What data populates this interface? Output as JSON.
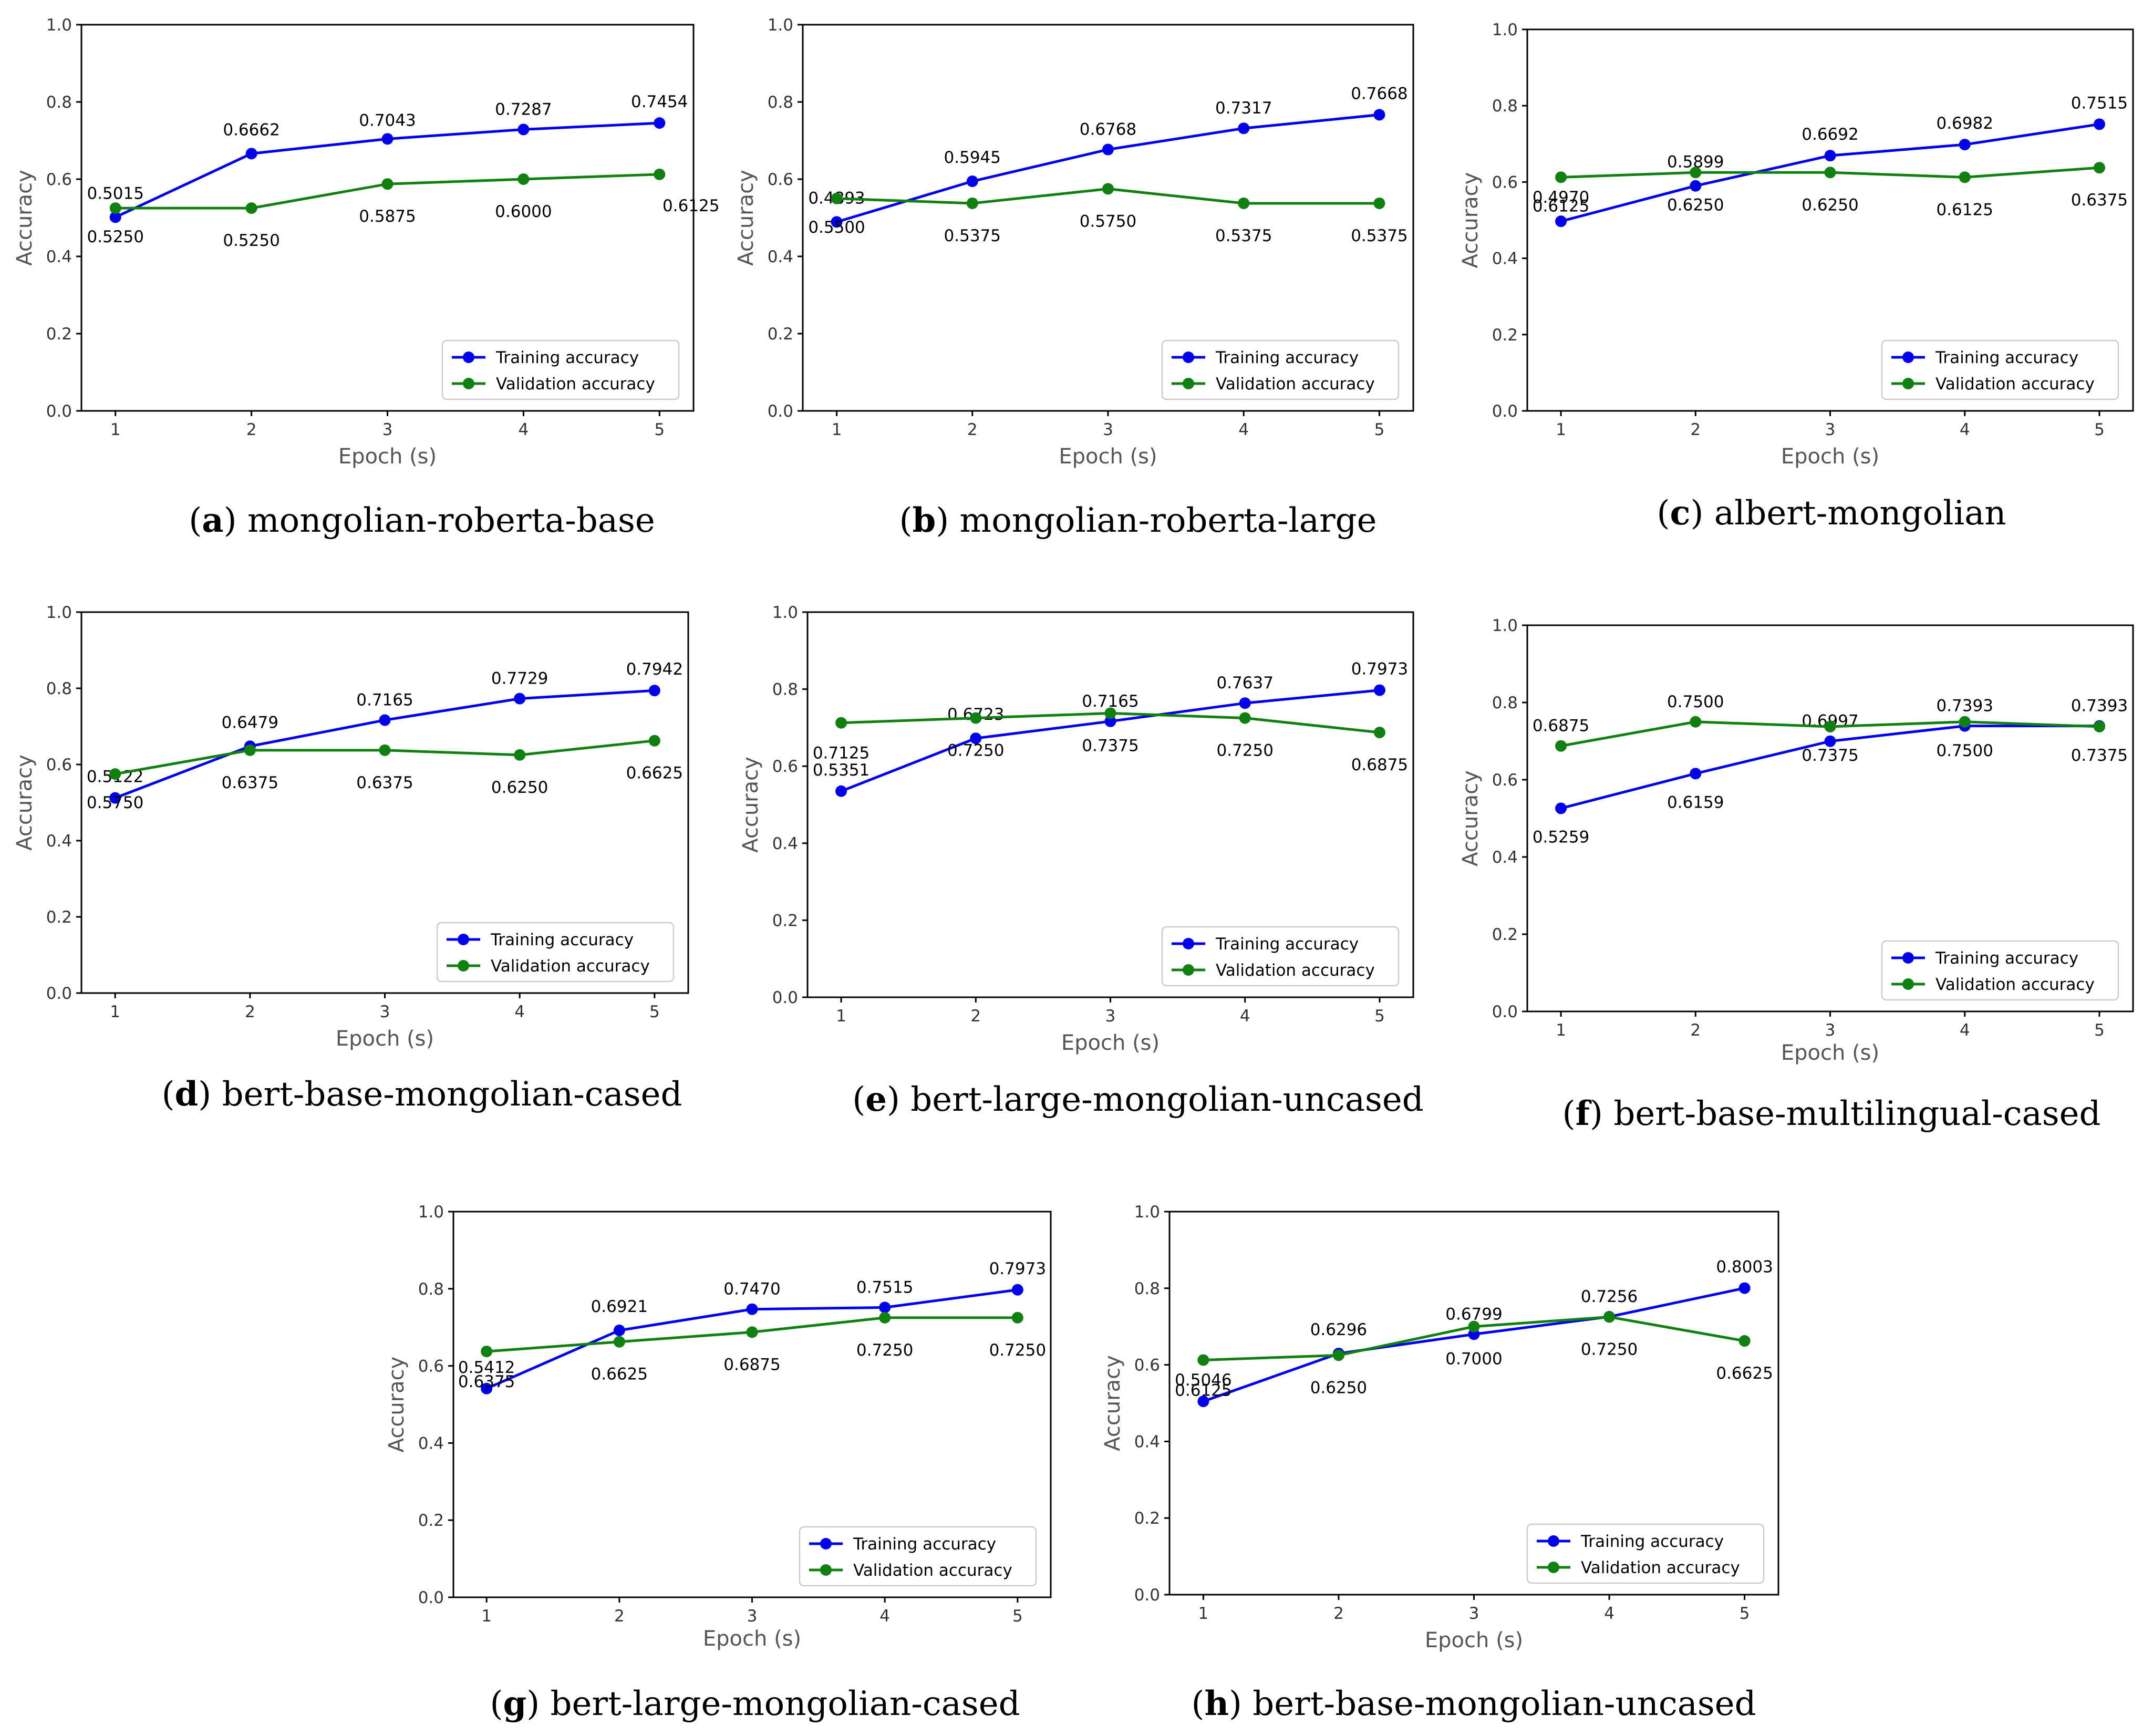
{
  "colors": {
    "training": "#0000ee",
    "validation": "#108010"
  },
  "chart_data": [
    {
      "type": "line",
      "letter": "a",
      "name": "mongolian-roberta-base",
      "x": [
        1,
        2,
        3,
        4,
        5
      ],
      "xlabel": "Epoch (s)",
      "ylabel": "Accuracy",
      "ylim": [
        0,
        1.0
      ],
      "xticks": [
        "1",
        "2",
        "3",
        "4",
        "5"
      ],
      "yticks": [
        "0.0",
        "0.2",
        "0.4",
        "0.6",
        "0.8",
        "1.0"
      ],
      "legend_position": "lower-right",
      "series": [
        {
          "name": "Training accuracy",
          "values": [
            0.5015,
            0.6662,
            0.7043,
            0.7287,
            0.7454
          ],
          "labels": [
            "0.5015",
            "0.6662",
            "0.7043",
            "0.7287",
            "0.7454"
          ]
        },
        {
          "name": "Validation accuracy",
          "values": [
            0.525,
            0.525,
            0.5875,
            0.6,
            0.6125
          ],
          "labels": [
            "0.5250",
            "0.5250",
            "0.5875",
            "0.6000",
            "0.6125"
          ]
        }
      ]
    },
    {
      "type": "line",
      "letter": "b",
      "name": "mongolian-roberta-large",
      "x": [
        1,
        2,
        3,
        4,
        5
      ],
      "xlabel": "Epoch (s)",
      "ylabel": "Accuracy",
      "ylim": [
        0,
        1.0
      ],
      "xticks": [
        "1",
        "2",
        "3",
        "4",
        "5"
      ],
      "yticks": [
        "0.0",
        "0.2",
        "0.4",
        "0.6",
        "0.8",
        "1.0"
      ],
      "legend_position": "lower-right",
      "series": [
        {
          "name": "Training accuracy",
          "values": [
            0.4893,
            0.5945,
            0.6768,
            0.7317,
            0.7668
          ],
          "labels": [
            "0.4893",
            "0.5945",
            "0.6768",
            "0.7317",
            "0.7668"
          ]
        },
        {
          "name": "Validation accuracy",
          "values": [
            0.55,
            0.5375,
            0.575,
            0.5375,
            0.5375
          ],
          "labels": [
            "0.5500",
            "0.5375",
            "0.5750",
            "0.5375",
            "0.5375"
          ]
        }
      ]
    },
    {
      "type": "line",
      "letter": "c",
      "name": "albert-mongolian",
      "x": [
        1,
        2,
        3,
        4,
        5
      ],
      "xlabel": "Epoch (s)",
      "ylabel": "Accuracy",
      "ylim": [
        0,
        1.0
      ],
      "xticks": [
        "1",
        "2",
        "3",
        "4",
        "5"
      ],
      "yticks": [
        "0.0",
        "0.2",
        "0.4",
        "0.6",
        "0.8",
        "1.0"
      ],
      "legend_position": "lower-right",
      "series": [
        {
          "name": "Training accuracy",
          "values": [
            0.497,
            0.5899,
            0.6692,
            0.6982,
            0.7515
          ],
          "labels": [
            "0.4970",
            "0.5899",
            "0.6692",
            "0.6982",
            "0.7515"
          ]
        },
        {
          "name": "Validation accuracy",
          "values": [
            0.6125,
            0.625,
            0.625,
            0.6125,
            0.6375
          ],
          "labels": [
            "0.6125",
            "0.6250",
            "0.6250",
            "0.6125",
            "0.6375"
          ]
        }
      ]
    },
    {
      "type": "line",
      "letter": "d",
      "name": "bert-base-mongolian-cased",
      "x": [
        1,
        2,
        3,
        4,
        5
      ],
      "xlabel": "Epoch (s)",
      "ylabel": "Accuracy",
      "ylim": [
        0,
        1.0
      ],
      "xticks": [
        "1",
        "2",
        "3",
        "4",
        "5"
      ],
      "yticks": [
        "0.0",
        "0.2",
        "0.4",
        "0.6",
        "0.8",
        "1.0"
      ],
      "legend_position": "lower-right",
      "series": [
        {
          "name": "Training accuracy",
          "values": [
            0.5122,
            0.6479,
            0.7165,
            0.7729,
            0.7942
          ],
          "labels": [
            "0.5122",
            "0.6479",
            "0.7165",
            "0.7729",
            "0.7942"
          ]
        },
        {
          "name": "Validation accuracy",
          "values": [
            0.575,
            0.6375,
            0.6375,
            0.625,
            0.6625
          ],
          "labels": [
            "0.5750",
            "0.6375",
            "0.6375",
            "0.6250",
            "0.6625"
          ]
        }
      ]
    },
    {
      "type": "line",
      "letter": "e",
      "name": "bert-large-mongolian-uncased",
      "x": [
        1,
        2,
        3,
        4,
        5
      ],
      "xlabel": "Epoch (s)",
      "ylabel": "Accuracy",
      "ylim": [
        0,
        1.0
      ],
      "xticks": [
        "1",
        "2",
        "3",
        "4",
        "5"
      ],
      "yticks": [
        "0.0",
        "0.2",
        "0.4",
        "0.6",
        "0.8",
        "1.0"
      ],
      "legend_position": "lower-right",
      "series": [
        {
          "name": "Training accuracy",
          "values": [
            0.5351,
            0.6723,
            0.7165,
            0.7637,
            0.7973
          ],
          "labels": [
            "0.5351",
            "0.6723",
            "0.7165",
            "0.7637",
            "0.7973"
          ]
        },
        {
          "name": "Validation accuracy",
          "values": [
            0.7125,
            0.725,
            0.7375,
            0.725,
            0.6875
          ],
          "labels": [
            "0.7125",
            "0.7250",
            "0.7375",
            "0.7250",
            "0.6875"
          ]
        }
      ]
    },
    {
      "type": "line",
      "letter": "f",
      "name": "bert-base-multilingual-cased",
      "x": [
        1,
        2,
        3,
        4,
        5
      ],
      "xlabel": "Epoch (s)",
      "ylabel": "Accuracy",
      "ylim": [
        0,
        1.0
      ],
      "xticks": [
        "1",
        "2",
        "3",
        "4",
        "5"
      ],
      "yticks": [
        "0.0",
        "0.2",
        "0.4",
        "0.6",
        "0.8",
        "1.0"
      ],
      "legend_position": "lower-right",
      "series": [
        {
          "name": "Training accuracy",
          "values": [
            0.5259,
            0.6159,
            0.6997,
            0.7393,
            0.7393
          ],
          "labels": [
            "0.5259",
            "0.6159",
            "0.6997",
            "0.7393",
            "0.7393"
          ]
        },
        {
          "name": "Validation accuracy",
          "values": [
            0.6875,
            0.75,
            0.7375,
            0.75,
            0.7375
          ],
          "labels": [
            "0.6875",
            "0.7500",
            "0.7375",
            "0.7500",
            "0.7375"
          ]
        }
      ]
    },
    {
      "type": "line",
      "letter": "g",
      "name": "bert-large-mongolian-cased",
      "x": [
        1,
        2,
        3,
        4,
        5
      ],
      "xlabel": "Epoch (s)",
      "ylabel": "Accuracy",
      "ylim": [
        0,
        1.0
      ],
      "xticks": [
        "1",
        "2",
        "3",
        "4",
        "5"
      ],
      "yticks": [
        "0.0",
        "0.2",
        "0.4",
        "0.6",
        "0.8",
        "1.0"
      ],
      "legend_position": "lower-right",
      "series": [
        {
          "name": "Training accuracy",
          "values": [
            0.5412,
            0.6921,
            0.747,
            0.7515,
            0.7973
          ],
          "labels": [
            "0.5412",
            "0.6921",
            "0.7470",
            "0.7515",
            "0.7973"
          ]
        },
        {
          "name": "Validation accuracy",
          "values": [
            0.6375,
            0.6625,
            0.6875,
            0.725,
            0.725
          ],
          "labels": [
            "0.6375",
            "0.6625",
            "0.6875",
            "0.7250",
            "0.7250"
          ]
        }
      ]
    },
    {
      "type": "line",
      "letter": "h",
      "name": "bert-base-mongolian-uncased",
      "x": [
        1,
        2,
        3,
        4,
        5
      ],
      "xlabel": "Epoch (s)",
      "ylabel": "Accuracy",
      "ylim": [
        0,
        1.0
      ],
      "xticks": [
        "1",
        "2",
        "3",
        "4",
        "5"
      ],
      "yticks": [
        "0.0",
        "0.2",
        "0.4",
        "0.6",
        "0.8",
        "1.0"
      ],
      "legend_position": "lower-right",
      "series": [
        {
          "name": "Training accuracy",
          "values": [
            0.5046,
            0.6296,
            0.6799,
            0.7256,
            0.8003
          ],
          "labels": [
            "0.5046",
            "0.6296",
            "0.6799",
            "0.7256",
            "0.8003"
          ]
        },
        {
          "name": "Validation accuracy",
          "values": [
            0.6125,
            0.625,
            0.7,
            0.725,
            0.6625
          ],
          "labels": [
            "0.6125",
            "0.6250",
            "0.7000",
            "0.7250",
            "0.6625"
          ]
        }
      ]
    }
  ]
}
